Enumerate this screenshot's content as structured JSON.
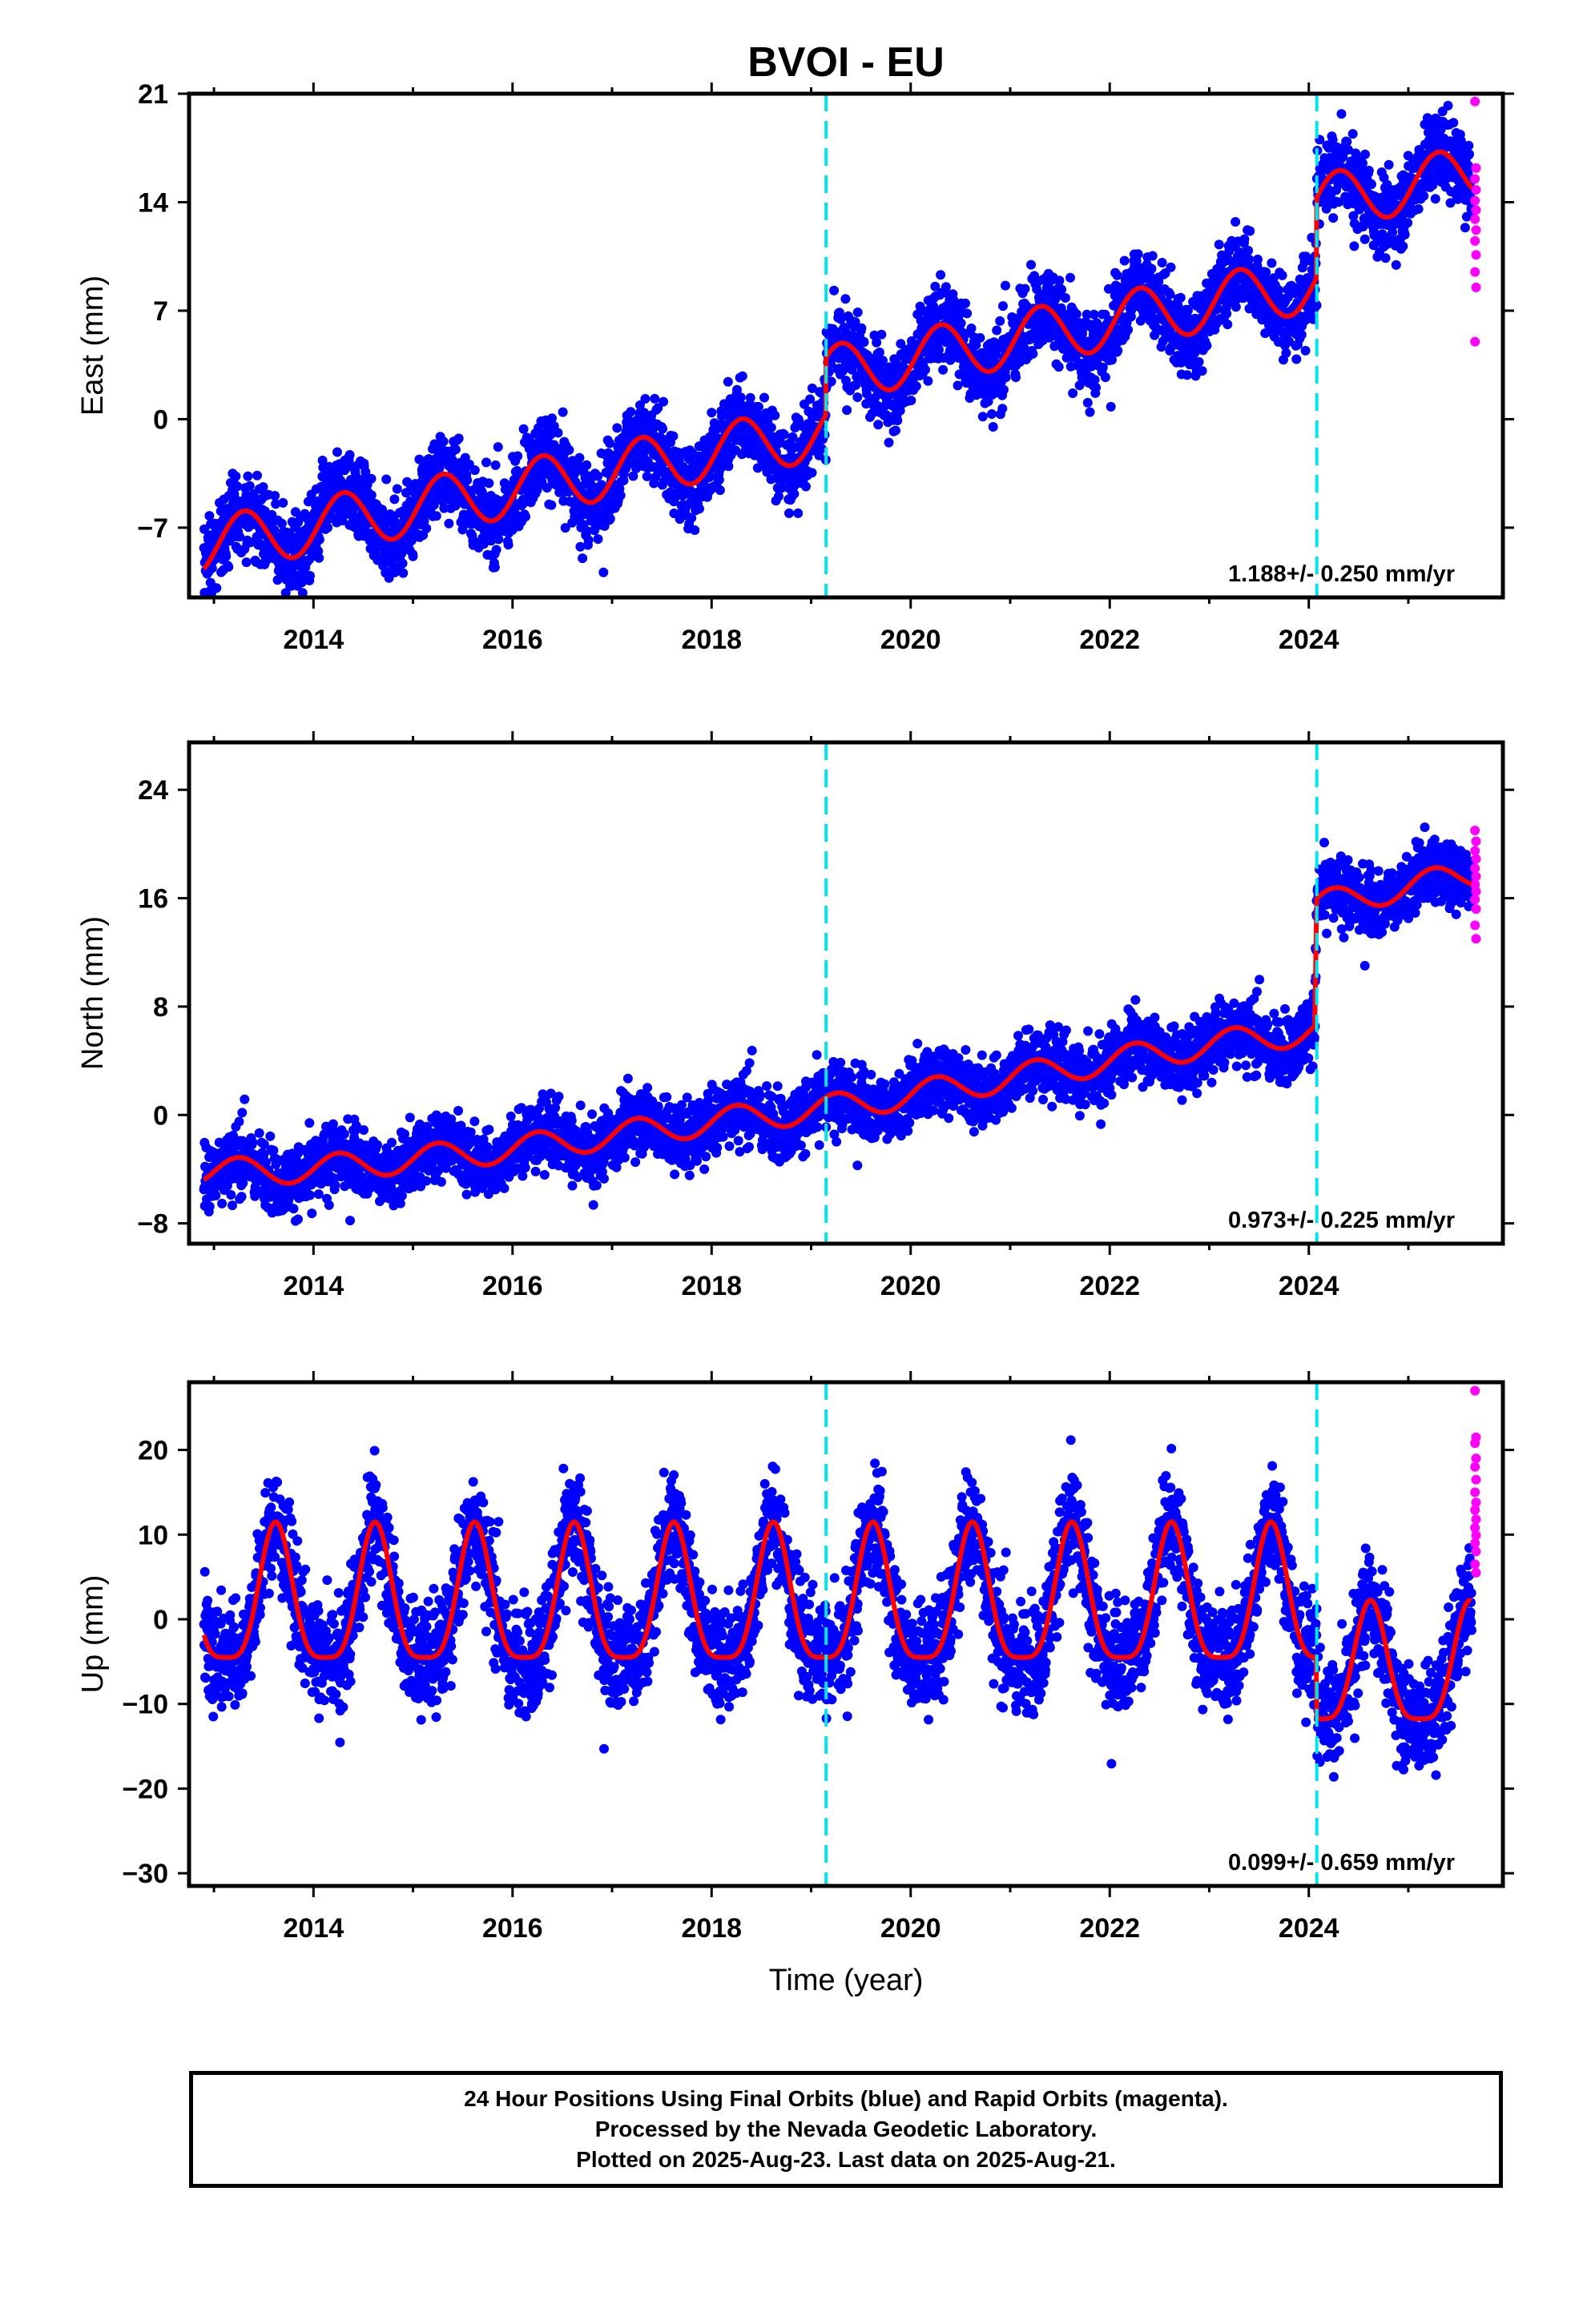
{
  "title": "BVOI - EU",
  "xlabel": "Time (year)",
  "x_ticks": [
    2014,
    2016,
    2018,
    2020,
    2022,
    2024
  ],
  "xlim": [
    2012.75,
    2025.95
  ],
  "event_lines": [
    2019.15,
    2024.08
  ],
  "colors": {
    "final_orbits": "#0000ff",
    "rapid_orbits": "#ff00ff",
    "model": "#ff0000",
    "event_line": "#00e5ee",
    "frame": "#000000"
  },
  "caption": {
    "line1": "24 Hour Positions Using Final Orbits (blue) and Rapid Orbits (magenta).",
    "line2": "Processed by the Nevada Geodetic Laboratory.",
    "line3": "Plotted on 2025-Aug-23. Last data on 2025-Aug-21."
  },
  "chart_data": [
    {
      "type": "scatter",
      "component": "east",
      "ylabel": "East (mm)",
      "ylim": [
        -11.5,
        21
      ],
      "y_ticks": [
        -7,
        0,
        7,
        14,
        21
      ],
      "rate_label": "1.188+/- 0.250 mm/yr",
      "data_span": [
        2012.9,
        2025.64
      ],
      "model_line": {
        "slope_mm_per_yr": 1.188,
        "offset_at_2012_9": -8.2,
        "annual_amplitude": 1.8,
        "annual_peak_phase": 0.3,
        "steps": [
          {
            "time": 2019.15,
            "size": 3.7
          },
          {
            "time": 2024.08,
            "size": 5.2
          }
        ]
      },
      "scatter_spread": 1.8,
      "rapid_values": [
        20.5,
        16.2,
        15.5,
        14.8,
        14.1,
        13.5,
        12.9,
        12.2,
        11.5,
        10.6,
        9.5,
        8.5,
        5.0
      ]
    },
    {
      "type": "scatter",
      "component": "north",
      "ylabel": "North (mm)",
      "ylim": [
        -9.5,
        27.5
      ],
      "y_ticks": [
        -8,
        0,
        8,
        16,
        24
      ],
      "rate_label": "0.973+/- 0.225 mm/yr",
      "data_span": [
        2012.9,
        2025.64
      ],
      "model_line": {
        "points": [
          [
            2012.9,
            -4.2
          ],
          [
            2014,
            -4.0
          ],
          [
            2016,
            -2.5
          ],
          [
            2018,
            -0.5
          ],
          [
            2019.15,
            0.5
          ],
          [
            2020,
            1.5
          ],
          [
            2022,
            4.0
          ],
          [
            2023,
            5.2
          ],
          [
            2024.06,
            6.2
          ],
          [
            2024.08,
            15.5
          ],
          [
            2025.64,
            17.8
          ]
        ],
        "annual_amplitude": 1.0,
        "annual_peak_phase": 0.25
      },
      "scatter_spread": 1.7,
      "rapid_values": [
        21.0,
        20.2,
        19.5,
        18.9,
        18.2,
        17.6,
        17.0,
        16.5,
        15.9,
        15.2,
        14.0,
        13.0
      ]
    },
    {
      "type": "scatter",
      "component": "up",
      "ylabel": "Up (mm)",
      "ylim": [
        -31.5,
        28
      ],
      "y_ticks": [
        -30,
        -20,
        -10,
        0,
        10,
        20
      ],
      "rate_label": "0.099+/- 0.659 mm/yr",
      "data_span": [
        2012.9,
        2025.64
      ],
      "model_line": {
        "pre_event_mean": 1.5,
        "pre_event_amplitude": 8.0,
        "post_event_mean": -6.5,
        "post_event_amplitude": 7.0,
        "annual_peak_phase": 0.62,
        "step_time": 2024.08
      },
      "scatter_spread": 4.5,
      "rapid_values": [
        27.0,
        21.5,
        20.8,
        19.0,
        18.0,
        16.5,
        15.0,
        13.8,
        12.9,
        11.8,
        10.8,
        9.9,
        9.0,
        8.0,
        6.5,
        5.5
      ]
    }
  ]
}
